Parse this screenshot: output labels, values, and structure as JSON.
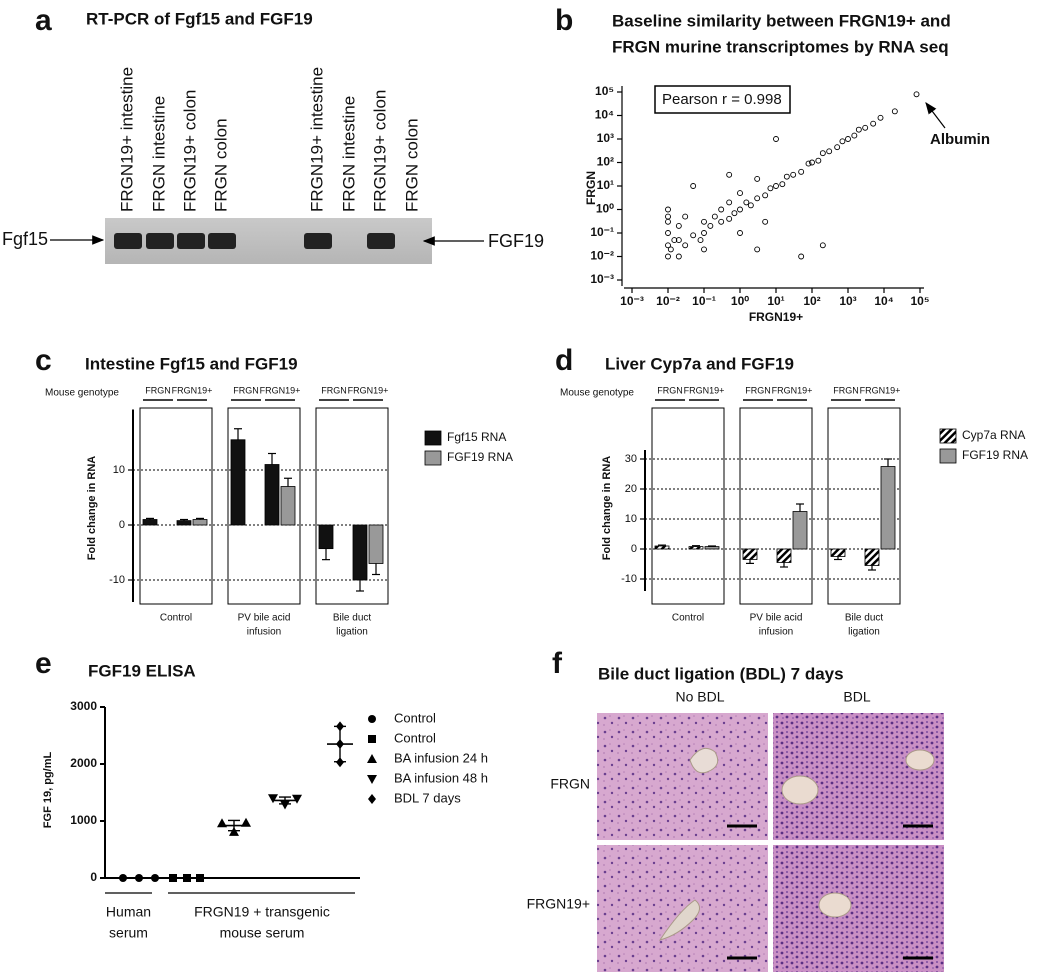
{
  "panels": {
    "a": {
      "letter": "a",
      "title": "RT-PCR of Fgf15 and FGF19",
      "lanes": [
        "FRGN19+ intestine",
        "FRGN intestine",
        "FRGN19+ colon",
        "FRGN colon",
        "FRGN19+ intestine",
        "FRGN intestine",
        "FRGN19+ colon",
        "FRGN colon"
      ],
      "left_label": "Fgf15",
      "right_label": "FGF19"
    },
    "f": {
      "letter": "f",
      "title": "Bile duct ligation (BDL) 7 days",
      "columns": [
        "No BDL",
        "BDL"
      ],
      "rows": [
        "FRGN",
        "FRGN19+"
      ]
    }
  },
  "chart_data": [
    {
      "letter": "b",
      "type": "scatter",
      "title": [
        "Baseline similarity between FRGN19+ and",
        "FRGN murine transcriptomes by RNA seq"
      ],
      "x_label": "FRGN19+",
      "y_label": "FRGN",
      "log": true,
      "annotations": [
        "Pearson r = 0.998",
        "Albumin"
      ],
      "xlim": [
        0.001,
        100000
      ],
      "ylim": [
        0.001,
        100000
      ],
      "xticks": [
        {
          "value": 0.001,
          "label": "10⁻³"
        },
        {
          "value": 0.01,
          "label": "10⁻²"
        },
        {
          "value": 0.1,
          "label": "10⁻¹"
        },
        {
          "value": 1,
          "label": "10⁰"
        },
        {
          "value": 10,
          "label": "10¹"
        },
        {
          "value": 100,
          "label": "10²"
        },
        {
          "value": 1000,
          "label": "10³"
        },
        {
          "value": 10000,
          "label": "10⁴"
        },
        {
          "value": 100000,
          "label": "10⁵"
        }
      ],
      "yticks": [
        {
          "value": 0.001,
          "label": "10⁻³"
        },
        {
          "value": 0.01,
          "label": "10⁻²"
        },
        {
          "value": 0.1,
          "label": "10⁻¹"
        },
        {
          "value": 1,
          "label": "10⁰"
        },
        {
          "value": 10,
          "label": "10¹"
        },
        {
          "value": 100,
          "label": "10²"
        },
        {
          "value": 1000,
          "label": "10³"
        },
        {
          "value": 10000,
          "label": "10⁴"
        },
        {
          "value": 100000,
          "label": "10⁵"
        }
      ],
      "series": [
        {
          "color": "#000000",
          "x": [
            0.01,
            0.01,
            0.01,
            0.01,
            0.01,
            0.012,
            0.015,
            0.02,
            0.02,
            0.03,
            0.03,
            0.05,
            0.05,
            0.08,
            0.1,
            0.1,
            0.1,
            0.15,
            0.2,
            0.3,
            0.3,
            0.5,
            0.5,
            0.7,
            1,
            1,
            1,
            1.5,
            2,
            3,
            3,
            5,
            5,
            7,
            10,
            10,
            15,
            20,
            30,
            50,
            50,
            80,
            100,
            150,
            200,
            300,
            500,
            700,
            1000,
            1500,
            2000,
            3000,
            5000,
            8000,
            20000,
            200,
            0.5,
            3,
            0.02,
            0.01,
            80000
          ],
          "y": [
            0.01,
            0.03,
            0.1,
            0.3,
            1,
            0.02,
            0.05,
            0.2,
            0.01,
            0.5,
            0.03,
            0.08,
            10,
            0.05,
            0.1,
            0.3,
            0.02,
            0.2,
            0.5,
            0.3,
            1,
            0.4,
            2,
            0.7,
            1,
            0.1,
            5,
            2,
            1.5,
            3,
            20,
            4,
            0.3,
            8,
            10,
            1000,
            12,
            25,
            30,
            40,
            0.01,
            90,
            100,
            120,
            250,
            300,
            450,
            800,
            1000,
            1400,
            2500,
            3000,
            4500,
            8000,
            15000,
            0.03,
            30,
            0.02,
            0.05,
            0.5,
            80000
          ]
        }
      ]
    },
    {
      "letter": "c",
      "type": "bar",
      "title": "Intestine Fgf15 and FGF19",
      "genotype_label": "Mouse genotype",
      "categories": [
        "FRGN",
        "FRGN19+",
        "FRGN",
        "FRGN19+",
        "FRGN",
        "FRGN19+"
      ],
      "groups": [
        [
          "Control"
        ],
        [
          "PV bile acid",
          "infusion"
        ],
        [
          "Bile duct",
          "ligation"
        ]
      ],
      "y_label": "Fold change in RNA",
      "ylim": [
        -14,
        21
      ],
      "yticks": [
        -10,
        0,
        10
      ],
      "grid": true,
      "series": [
        {
          "name": "Fgf15 RNA",
          "color": "#111111",
          "values": [
            1,
            0.8,
            15.5,
            11,
            -4.3,
            -10
          ],
          "errors": [
            0.2,
            0.2,
            2,
            2,
            2,
            2
          ]
        },
        {
          "name": "FGF19 RNA",
          "color": "#999999",
          "values": [
            null,
            1,
            null,
            7,
            null,
            -7
          ],
          "errors": [
            null,
            0.2,
            null,
            1.5,
            null,
            2
          ]
        }
      ]
    },
    {
      "letter": "d",
      "type": "bar",
      "title": "Liver Cyp7a and FGF19",
      "genotype_label": "Mouse genotype",
      "categories": [
        "FRGN",
        "FRGN19+",
        "FRGN",
        "FRGN19+",
        "FRGN",
        "FRGN19+"
      ],
      "groups": [
        [
          "Control"
        ],
        [
          "PV bile acid",
          "infusion"
        ],
        [
          "Bile duct",
          "ligation"
        ]
      ],
      "y_label": "Fold change in RNA",
      "ylim": [
        -14,
        33
      ],
      "yticks": [
        -10,
        0,
        10,
        20,
        30
      ],
      "grid": true,
      "series": [
        {
          "name": "Cyp7a RNA",
          "color": "#000000",
          "hatch": true,
          "values": [
            1,
            0.8,
            -3.5,
            -4.5,
            -2.5,
            -5.5
          ],
          "errors": [
            0.3,
            0.3,
            1.3,
            1.5,
            1,
            1.5
          ]
        },
        {
          "name": "FGF19 RNA",
          "color": "#999999",
          "values": [
            null,
            0.8,
            null,
            12.5,
            null,
            27.5
          ],
          "errors": [
            null,
            0.2,
            null,
            2.5,
            null,
            2.5
          ]
        }
      ]
    },
    {
      "letter": "e",
      "type": "dot",
      "title": "FGF19 ELISA",
      "y_label": "FGF 19, pg/mL",
      "ylim": [
        0,
        3000
      ],
      "yticks": [
        0,
        1000,
        2000,
        3000
      ],
      "groups": [
        [
          "Human",
          "serum"
        ],
        [
          "FRGN19 + transgenic",
          "mouse serum"
        ]
      ],
      "series": [
        {
          "name": "Control",
          "marker": "circle",
          "values": [
            0,
            0,
            0
          ]
        },
        {
          "name": "Control",
          "marker": "square",
          "values": [
            0,
            0,
            0
          ]
        },
        {
          "name": "BA infusion 24 h",
          "marker": "triangle-up",
          "values": [
            960,
            810,
            970
          ],
          "mean": 920,
          "sd": 90
        },
        {
          "name": "BA infusion 48 h",
          "marker": "triangle-down",
          "values": [
            1400,
            1290,
            1390
          ],
          "mean": 1360,
          "sd": 60
        },
        {
          "name": "BDL 7 days",
          "marker": "diamond",
          "values": [
            2660,
            2350,
            2030
          ],
          "mean": 2350,
          "sd": 310
        }
      ]
    }
  ]
}
